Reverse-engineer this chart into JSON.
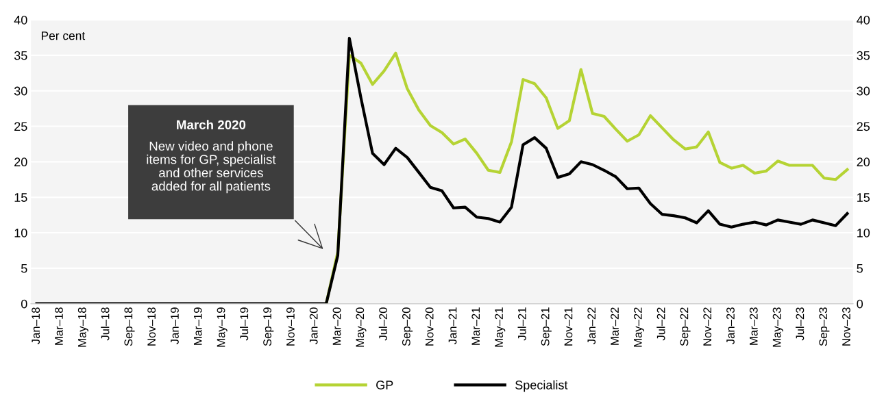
{
  "chart_data": {
    "type": "line",
    "ylabel": "Per cent",
    "categories": [
      "Jan–18",
      null,
      "Mar–18",
      null,
      "May–18",
      null,
      "Jul–18",
      null,
      "Sep–18",
      null,
      "Nov–18",
      null,
      "Jan–19",
      null,
      "Mar–19",
      null,
      "May–19",
      null,
      "Jul–19",
      null,
      "Sep–19",
      null,
      "Nov–19",
      null,
      "Jan–20",
      null,
      "Mar–20",
      null,
      "May–20",
      null,
      "Jul–20",
      null,
      "Sep–20",
      null,
      "Nov–20",
      null,
      "Jan–21",
      null,
      "Mar–21",
      null,
      "May–21",
      null,
      "Jul–21",
      null,
      "Sep–21",
      null,
      "Nov–21",
      null,
      "Jan–22",
      null,
      "Mar–22",
      null,
      "May–22",
      null,
      "Jul–22",
      null,
      "Sep–22",
      null,
      "Nov–22",
      null,
      "Jan–23",
      null,
      "Mar–23",
      null,
      "May–23",
      null,
      "Jul–23",
      null,
      "Sep–23",
      null,
      "Nov–23"
    ],
    "series": [
      {
        "name": "GP",
        "color": "#b5d334",
        "values": [
          null,
          null,
          null,
          null,
          null,
          null,
          null,
          null,
          null,
          null,
          null,
          null,
          null,
          null,
          null,
          null,
          null,
          null,
          null,
          null,
          null,
          null,
          null,
          null,
          null,
          0,
          7.3,
          35.0,
          33.9,
          30.9,
          32.8,
          35.3,
          30.3,
          27.3,
          25.1,
          24.1,
          22.5,
          23.2,
          21.2,
          18.8,
          18.5,
          22.8,
          31.6,
          31.0,
          29.0,
          24.7,
          25.8,
          33.0,
          26.8,
          26.4,
          24.6,
          22.9,
          23.8,
          26.5,
          24.8,
          23.1,
          21.8,
          22.1,
          24.2,
          19.9,
          19.1,
          19.5,
          18.4,
          18.7,
          20.1,
          19.5,
          19.5,
          19.5,
          17.7,
          17.5,
          18.9
        ]
      },
      {
        "name": "Specialist",
        "color": "#000000",
        "values": [
          0,
          0,
          0,
          0,
          0,
          0,
          0,
          0,
          0,
          0,
          0,
          0,
          0,
          0,
          0,
          0,
          0,
          0,
          0,
          0,
          0,
          0,
          0,
          0,
          0,
          0,
          6.8,
          37.4,
          29.0,
          21.2,
          19.6,
          21.9,
          20.6,
          18.5,
          16.4,
          15.9,
          13.5,
          13.6,
          12.2,
          12.0,
          11.5,
          13.6,
          22.4,
          23.4,
          21.9,
          17.8,
          18.3,
          20.0,
          19.6,
          18.8,
          17.9,
          16.2,
          16.3,
          14.1,
          12.6,
          12.4,
          12.1,
          11.4,
          13.1,
          11.2,
          10.8,
          11.2,
          11.5,
          11.1,
          11.8,
          11.5,
          11.2,
          11.8,
          11.4,
          11.0,
          12.7
        ]
      }
    ],
    "ylim": [
      0,
      40
    ],
    "yticks": [
      0,
      5,
      10,
      15,
      20,
      25,
      30,
      35,
      40
    ],
    "y2lim": [
      0,
      40
    ],
    "y2ticks": [
      0,
      5,
      10,
      15,
      20,
      25,
      30,
      35,
      40
    ],
    "grid": "y",
    "legend": "bottom",
    "marker": "none",
    "line_style": "solid",
    "annotations": [
      "March 2020",
      "New video and phone\nitems for GP, specialist\nand other services\nadded for all patients"
    ]
  }
}
